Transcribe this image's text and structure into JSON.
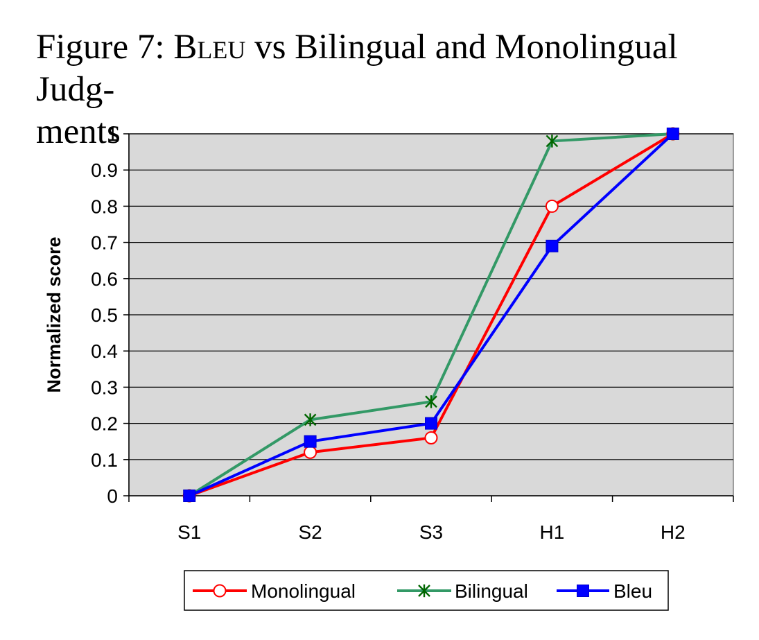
{
  "caption": {
    "prefix": "Figure 7: ",
    "smallcaps": "Bleu",
    "line1_rest": " vs Bilingual and Monolingual Judg-",
    "line2": "ments"
  },
  "chart_data": {
    "type": "line",
    "title": "",
    "xlabel": "",
    "ylabel": "Normalized score",
    "categories": [
      "S1",
      "S2",
      "S3",
      "H1",
      "H2"
    ],
    "ylim": [
      0,
      1
    ],
    "yticks": [
      0,
      0.1,
      0.2,
      0.3,
      0.4,
      0.5,
      0.6,
      0.7,
      0.8,
      0.9,
      1
    ],
    "ytick_labels": [
      "0",
      "0.1",
      "0.2",
      "0.3",
      "0.4",
      "0.5",
      "0.6",
      "0.7",
      "0.8",
      "0.9",
      "1"
    ],
    "grid": true,
    "legend_position": "bottom",
    "series": [
      {
        "name": "Monolingual",
        "values": [
          0.0,
          0.12,
          0.16,
          0.8,
          1.0
        ],
        "color": "#ff0000",
        "marker": "circle-open"
      },
      {
        "name": "Bilingual",
        "values": [
          0.0,
          0.21,
          0.26,
          0.98,
          1.0
        ],
        "color": "#339966",
        "marker": "asterisk"
      },
      {
        "name": "Bleu",
        "values": [
          0.0,
          0.15,
          0.2,
          0.69,
          1.0
        ],
        "color": "#0000ff",
        "marker": "square"
      }
    ],
    "colors": {
      "plot_background": "#d9d9d9",
      "gridline": "#000000"
    }
  }
}
